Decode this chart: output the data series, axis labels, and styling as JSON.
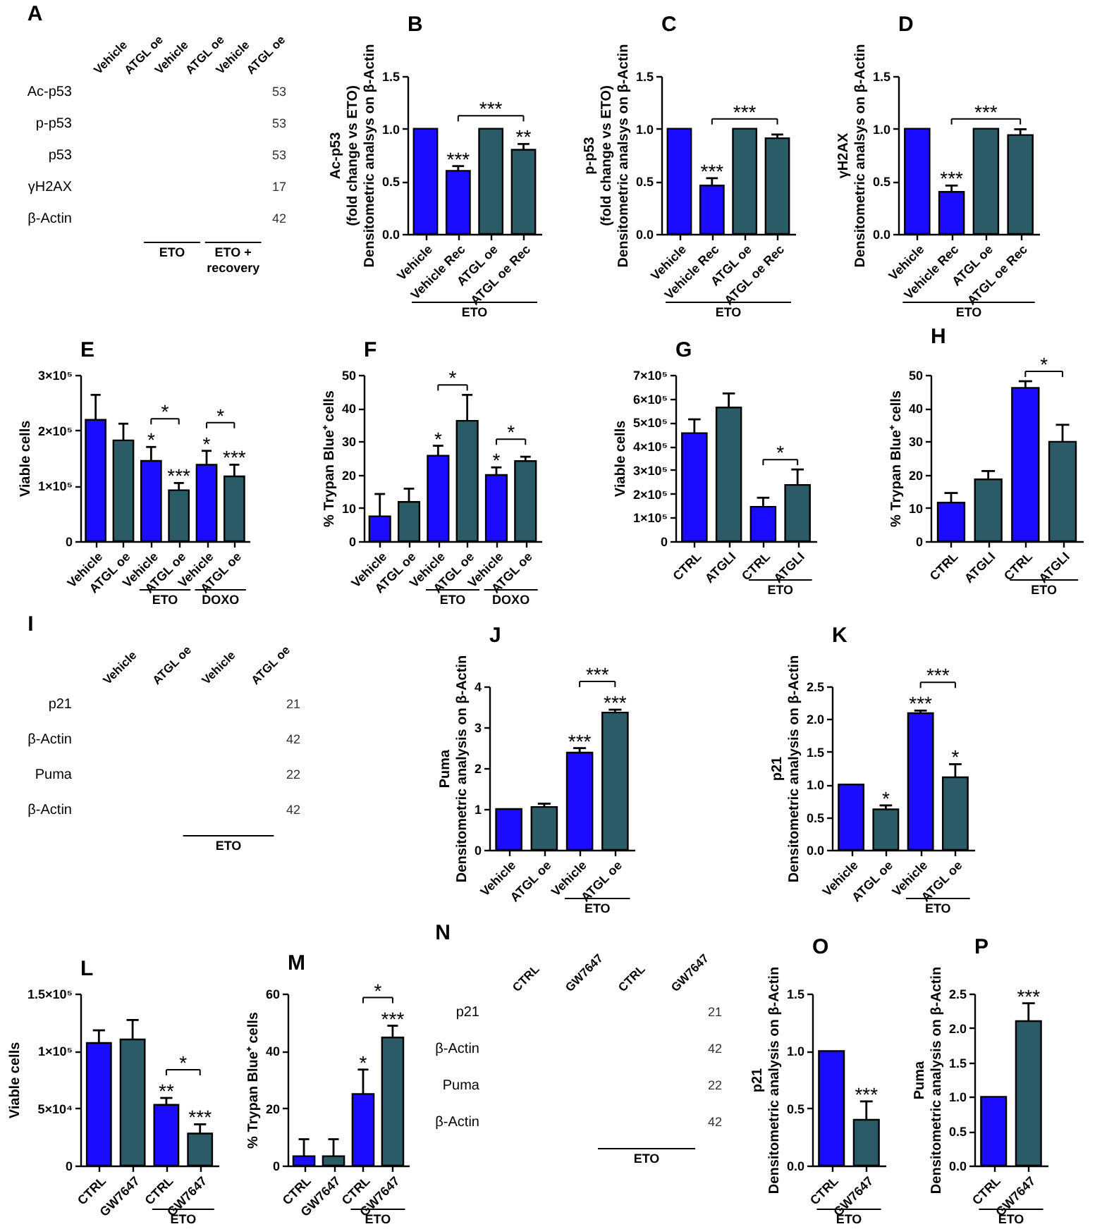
{
  "chart_data": [
    {
      "type": "other",
      "title": "A",
      "categories": [
        "Vehicle",
        "ATGL oe",
        "Vehicle",
        "ATGL oe",
        "Vehicle",
        "ATGL oe"
      ],
      "y_categories": [
        "Ac-p53",
        "p-p53",
        "p53",
        "γH2AX",
        "β-Actin"
      ],
      "y2_categories": [
        "53",
        "53",
        "53",
        "17",
        "42"
      ],
      "annotations": [
        "ETO",
        "ETO +\nrecovery"
      ]
    },
    {
      "type": "bar",
      "title": "B",
      "categories": [
        "Vehicle",
        "Vehicle Rec",
        "ATGL oe",
        "ATGL oe Rec"
      ],
      "values": [
        1.0,
        0.6,
        1.0,
        0.8
      ],
      "colors": [
        "#1c0cff",
        "#1c0cff",
        "#2b5b66",
        "#2b5b66"
      ],
      "errors": [
        null,
        [
          0.6,
          0.645
        ],
        null,
        [
          0.8,
          0.855
        ]
      ],
      "value_labels": [
        null,
        "***",
        null,
        "**"
      ],
      "ylim": [
        0,
        1.5
      ],
      "yticks": [
        {
          "value": 0,
          "label": "0.0"
        },
        0.5,
        {
          "value": 1,
          "label": "1.0"
        },
        1.5
      ],
      "ylabel": "Ac-p53\n(fold change vs ETO)\nDensitometric analsys on β-Actin",
      "annotations": [
        "ETO",
        "***"
      ]
    },
    {
      "type": "bar",
      "title": "C",
      "categories": [
        "Vehicle",
        "Vehicle Rec",
        "ATGL oe",
        "ATGL oe Rec"
      ],
      "values": [
        1.0,
        0.46,
        1.0,
        0.91
      ],
      "colors": [
        "#1c0cff",
        "#1c0cff",
        "#2b5b66",
        "#2b5b66"
      ],
      "errors": [
        null,
        [
          0.46,
          0.53
        ],
        null,
        [
          0.91,
          0.945
        ]
      ],
      "value_labels": [
        null,
        "***",
        null,
        null
      ],
      "ylim": [
        0,
        1.5
      ],
      "yticks": [
        {
          "value": 0,
          "label": "0.0"
        },
        0.5,
        {
          "value": 1,
          "label": "1.0"
        },
        1.5
      ],
      "ylabel": "p-p53\n(fold change vs ETO)\nDensitometric analsys on β-Actin",
      "annotations": [
        "ETO",
        "***"
      ]
    },
    {
      "type": "bar",
      "title": "D",
      "categories": [
        "Vehicle",
        "Vehicle Rec",
        "ATGL oe",
        "ATGL oe Rec"
      ],
      "values": [
        1.0,
        0.4,
        1.0,
        0.94
      ],
      "colors": [
        "#1c0cff",
        "#1c0cff",
        "#2b5b66",
        "#2b5b66"
      ],
      "errors": [
        null,
        [
          0.4,
          0.46
        ],
        null,
        [
          0.94,
          0.995
        ]
      ],
      "value_labels": [
        null,
        "***",
        null,
        null
      ],
      "ylim": [
        0,
        1.5
      ],
      "yticks": [
        {
          "value": 0,
          "label": "0.0"
        },
        0.5,
        {
          "value": 1,
          "label": "1.0"
        },
        1.5
      ],
      "ylabel": "γH2AX\nDensitometric analsys on β-Actin",
      "annotations": [
        "ETO",
        "***"
      ]
    },
    {
      "type": "bar",
      "title": "E",
      "categories": [
        "Vehicle",
        "ATGL oe",
        "Vehicle",
        "ATGL oe",
        "Vehicle",
        "ATGL oe"
      ],
      "values": [
        219000,
        182000,
        145000,
        92000,
        138000,
        117000
      ],
      "colors": [
        "#1c0cff",
        "#2b5b66",
        "#1c0cff",
        "#2b5b66",
        "#1c0cff",
        "#2b5b66"
      ],
      "errors": [
        [
          219000,
          264000
        ],
        [
          182000,
          212000
        ],
        [
          145000,
          170000
        ],
        [
          92000,
          105000
        ],
        [
          138000,
          163000
        ],
        [
          117000,
          138000
        ]
      ],
      "value_labels": [
        null,
        null,
        "*",
        "***",
        "*",
        "***"
      ],
      "ylim": [
        0,
        300000
      ],
      "yticks": [
        0,
        {
          "value": 100000,
          "label": "1×10⁵"
        },
        {
          "value": 200000,
          "label": "2×10⁵"
        },
        {
          "value": 300000,
          "label": "3×10⁵"
        }
      ],
      "ylabel": "Viable cells",
      "annotations": [
        "ETO",
        "DOXO",
        "*",
        "*"
      ]
    },
    {
      "type": "bar",
      "title": "F",
      "categories": [
        "Vehicle",
        "ATGL oe",
        "Vehicle",
        "ATGL oe",
        "Vehicle",
        "ATGL oe"
      ],
      "values": [
        7.5,
        11.8,
        25.7,
        36.2,
        19.9,
        24.1
      ],
      "colors": [
        "#1c0cff",
        "#2b5b66",
        "#1c0cff",
        "#2b5b66",
        "#1c0cff",
        "#2b5b66"
      ],
      "errors": [
        [
          7.5,
          14.2
        ],
        [
          11.8,
          15.8
        ],
        [
          25.7,
          28.7
        ],
        [
          36.2,
          44
        ],
        [
          19.9,
          22.2
        ],
        [
          24.1,
          25.4
        ]
      ],
      "value_labels": [
        null,
        null,
        "*",
        null,
        "*",
        null
      ],
      "ylim": [
        0,
        50
      ],
      "yticks": [
        0,
        10,
        20,
        30,
        40,
        50
      ],
      "ylabel": "% Trypan Blue⁺ cells",
      "annotations": [
        "ETO",
        "DOXO",
        "*",
        "*"
      ]
    },
    {
      "type": "bar",
      "title": "G",
      "categories": [
        "CTRL",
        "ATGLI",
        "CTRL",
        "ATGLI"
      ],
      "values": [
        455000,
        563000,
        145000,
        237000
      ],
      "colors": [
        "#1c0cff",
        "#2b5b66",
        "#1c0cff",
        "#2b5b66"
      ],
      "errors": [
        [
          455000,
          513000
        ],
        [
          563000,
          622000
        ],
        [
          145000,
          183000
        ],
        [
          237000,
          302000
        ]
      ],
      "ylim": [
        0,
        700000
      ],
      "yticks": [
        0,
        {
          "value": 100000,
          "label": "1×10⁵"
        },
        {
          "value": 200000,
          "label": "2×10⁵"
        },
        {
          "value": 300000,
          "label": "3×10⁵"
        },
        {
          "value": 400000,
          "label": "4×10⁵"
        },
        {
          "value": 500000,
          "label": "5×10⁵"
        },
        {
          "value": 600000,
          "label": "6×10⁵"
        },
        {
          "value": 700000,
          "label": "7×10⁵"
        }
      ],
      "ylabel": "Viable cells",
      "annotations": [
        "ETO",
        "*"
      ]
    },
    {
      "type": "bar",
      "title": "H",
      "categories": [
        "CTRL",
        "ATGLI",
        "CTRL",
        "ATGLI"
      ],
      "values": [
        11.6,
        18.6,
        46.1,
        29.9
      ],
      "colors": [
        "#1c0cff",
        "#2b5b66",
        "#1c0cff",
        "#2b5b66"
      ],
      "errors": [
        [
          11.6,
          14.5
        ],
        [
          18.6,
          21.1
        ],
        [
          46.1,
          48.1
        ],
        [
          29.9,
          35
        ]
      ],
      "ylim": [
        0,
        50
      ],
      "yticks": [
        0,
        10,
        20,
        30,
        40,
        50
      ],
      "ylabel": "% Trypan Blue⁺ cells",
      "annotations": [
        "ETO",
        "*"
      ]
    },
    {
      "type": "other",
      "title": "I",
      "categories": [
        "Vehicle",
        "ATGL oe",
        "Vehicle",
        "ATGL oe"
      ],
      "y_categories": [
        "p21",
        "β-Actin",
        "Puma",
        "β-Actin"
      ],
      "y2_categories": [
        "21",
        "42",
        "22",
        "42"
      ],
      "annotations": [
        "ETO"
      ]
    },
    {
      "type": "bar",
      "title": "J",
      "categories": [
        "Vehicle",
        "ATGL oe",
        "Vehicle",
        "ATGL oe"
      ],
      "values": [
        1.0,
        1.05,
        2.38,
        3.36
      ],
      "colors": [
        "#1c0cff",
        "#2b5b66",
        "#1c0cff",
        "#2b5b66"
      ],
      "errors": [
        null,
        [
          1.05,
          1.13
        ],
        [
          2.38,
          2.49
        ],
        [
          3.36,
          3.43
        ]
      ],
      "value_labels": [
        null,
        null,
        "***",
        "***"
      ],
      "ylim": [
        0,
        4
      ],
      "yticks": [
        0,
        1,
        2,
        3,
        4
      ],
      "ylabel": "Puma\nDensitometric analysis on β-Actin",
      "annotations": [
        "ETO",
        "***"
      ]
    },
    {
      "type": "bar",
      "title": "K",
      "categories": [
        "Vehicle",
        "ATGL oe",
        "Vehicle",
        "ATGL oe"
      ],
      "values": [
        1.0,
        0.62,
        2.09,
        1.11
      ],
      "colors": [
        "#1c0cff",
        "#2b5b66",
        "#1c0cff",
        "#2b5b66"
      ],
      "errors": [
        null,
        [
          0.62,
          0.68
        ],
        [
          2.09,
          2.13
        ],
        [
          1.11,
          1.31
        ]
      ],
      "value_labels": [
        null,
        "*",
        "***",
        "*"
      ],
      "ylim": [
        0,
        2.5
      ],
      "yticks": [
        {
          "value": 0,
          "label": "0.0"
        },
        0.5,
        {
          "value": 1,
          "label": "1.0"
        },
        1.5,
        {
          "value": 2,
          "label": "2.0"
        },
        2.5
      ],
      "ylabel": "p21\nDensitometric analysis on β-Actin",
      "annotations": [
        "ETO",
        "***"
      ]
    },
    {
      "type": "bar",
      "title": "L",
      "categories": [
        "CTRL",
        "GW7647",
        "CTRL",
        "GW7647"
      ],
      "values": [
        107000,
        110000,
        53000,
        28000
      ],
      "colors": [
        "#1c0cff",
        "#2b5b66",
        "#1c0cff",
        "#2b5b66"
      ],
      "errors": [
        [
          107000,
          118000
        ],
        [
          110000,
          127000
        ],
        [
          53000,
          59000
        ],
        [
          28000,
          36000
        ]
      ],
      "value_labels": [
        null,
        null,
        "**",
        "***"
      ],
      "ylim": [
        0,
        150000
      ],
      "yticks": [
        0,
        {
          "value": 50000,
          "label": "5×10⁴"
        },
        {
          "value": 100000,
          "label": "1×10⁵"
        },
        {
          "value": 150000,
          "label": "1.5×10⁵"
        }
      ],
      "ylabel": "Viable cells",
      "annotations": [
        "ETO",
        "*"
      ]
    },
    {
      "type": "bar",
      "title": "M",
      "categories": [
        "CTRL",
        "GW7647",
        "CTRL",
        "GW7647"
      ],
      "values": [
        3.3,
        3.3,
        25,
        44.7
      ],
      "colors": [
        "#1c0cff",
        "#2b5b66",
        "#1c0cff",
        "#2b5b66"
      ],
      "errors": [
        [
          3.3,
          9.2
        ],
        [
          3.3,
          9.2
        ],
        [
          25,
          33.5
        ],
        [
          44.7,
          48.8
        ]
      ],
      "value_labels": [
        null,
        null,
        "*",
        "***"
      ],
      "ylim": [
        0,
        60
      ],
      "yticks": [
        0,
        20,
        40,
        60
      ],
      "ylabel": "% Trypan Blue⁺ cells",
      "annotations": [
        "ETO",
        "*"
      ]
    },
    {
      "type": "other",
      "title": "N",
      "categories": [
        "CTRL",
        "GW7647",
        "CTRL",
        "GW7647"
      ],
      "y_categories": [
        "p21",
        "β-Actin",
        "Puma",
        "β-Actin"
      ],
      "y2_categories": [
        "21",
        "42",
        "22",
        "42"
      ],
      "annotations": [
        "ETO"
      ]
    },
    {
      "type": "bar",
      "title": "O",
      "categories": [
        "CTRL",
        "GW7647"
      ],
      "values": [
        1.0,
        0.4
      ],
      "colors": [
        "#1c0cff",
        "#2b5b66"
      ],
      "errors": [
        null,
        [
          0.4,
          0.56
        ]
      ],
      "value_labels": [
        null,
        "***"
      ],
      "ylim": [
        0,
        1.5
      ],
      "yticks": [
        {
          "value": 0,
          "label": "0.0"
        },
        0.5,
        {
          "value": 1,
          "label": "1.0"
        },
        1.5
      ],
      "ylabel": "p21\nDensitometric analysis on β-Actin",
      "annotations": [
        "ETO"
      ]
    },
    {
      "type": "bar",
      "title": "P",
      "categories": [
        "CTRL",
        "GW7647"
      ],
      "values": [
        1.0,
        2.1
      ],
      "colors": [
        "#1c0cff",
        "#2b5b66"
      ],
      "errors": [
        null,
        [
          2.1,
          2.36
        ]
      ],
      "value_labels": [
        null,
        "***"
      ],
      "ylim": [
        0,
        2.5
      ],
      "yticks": [
        {
          "value": 0,
          "label": "0.0"
        },
        0.5,
        {
          "value": 1,
          "label": "1.0"
        },
        1.5,
        {
          "value": 2,
          "label": "2.0"
        },
        2.5
      ],
      "ylabel": "Puma\nDensitometric analysis on β-Actin",
      "annotations": [
        "ETO"
      ]
    }
  ]
}
